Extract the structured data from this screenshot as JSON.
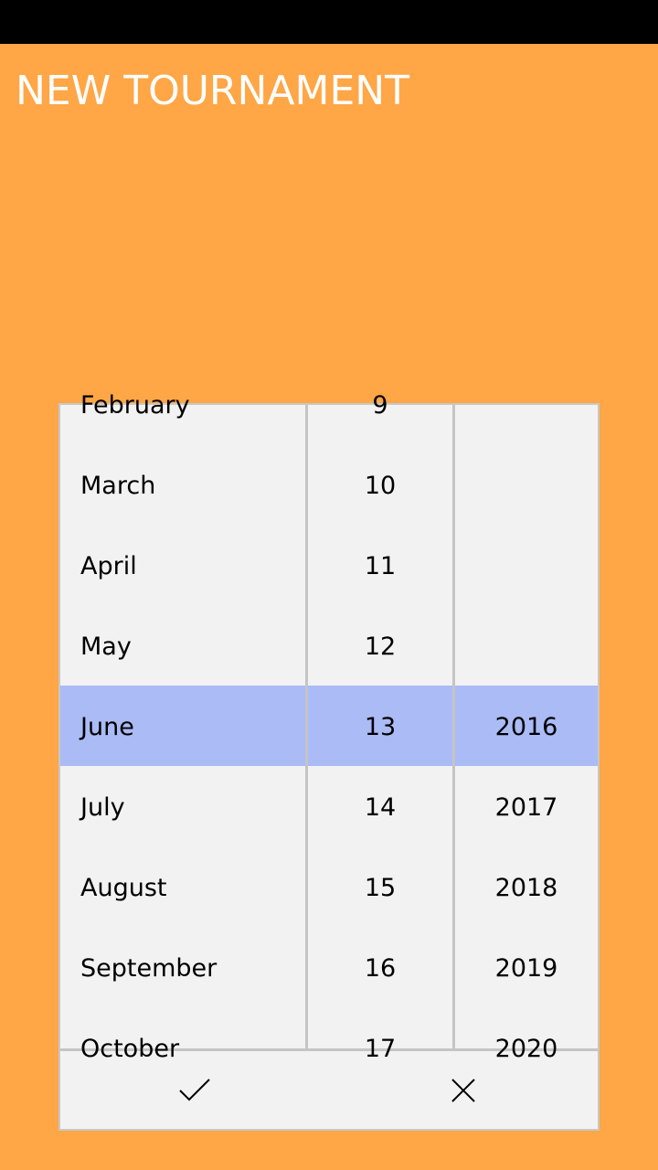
{
  "header": {
    "title": "NEW TOURNAMENT"
  },
  "date_picker": {
    "months": [
      "February",
      "March",
      "April",
      "May",
      "June",
      "July",
      "August",
      "September",
      "October"
    ],
    "days": [
      "9",
      "10",
      "11",
      "12",
      "13",
      "14",
      "15",
      "16",
      "17"
    ],
    "years": [
      "",
      "",
      "",
      "",
      "2016",
      "2017",
      "2018",
      "2019",
      "2020"
    ],
    "selected": {
      "month": "June",
      "day": "13",
      "year": "2016"
    }
  },
  "actions": {
    "accept_icon": "checkmark-icon",
    "cancel_icon": "close-icon"
  },
  "colors": {
    "background": "#FFA646",
    "status_bar": "#000000",
    "picker_background": "#F2F2F2",
    "selection_highlight": "#AABBF6",
    "divider": "#C4C4C4",
    "title_text": "#FFFFFF"
  }
}
